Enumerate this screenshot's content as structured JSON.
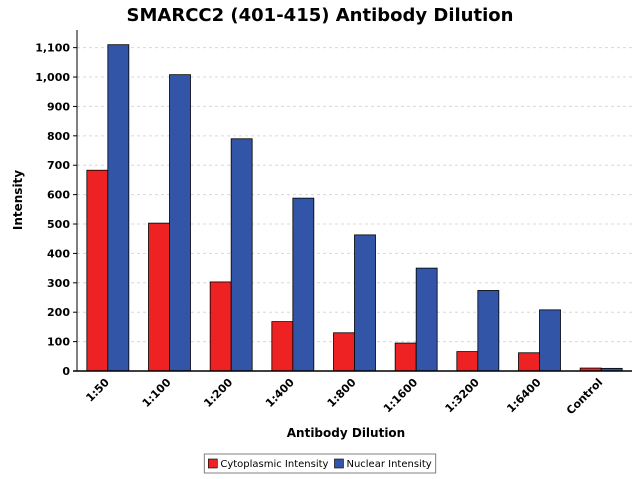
{
  "chart_data": {
    "type": "bar",
    "title": "SMARCC2 (401-415) Antibody Dilution",
    "xlabel": "Antibody Dilution",
    "ylabel": "Intensity",
    "categories": [
      "1:50",
      "1:100",
      "1:200",
      "1:400",
      "1:800",
      "1:1600",
      "1:3200",
      "1:6400",
      "Control"
    ],
    "series": [
      {
        "name": "Cytoplasmic Intensity",
        "color": "#ee2222",
        "values": [
          683,
          503,
          303,
          168,
          130,
          95,
          66,
          62,
          10
        ]
      },
      {
        "name": "Nuclear Intensity",
        "color": "#3355a8",
        "values": [
          1110,
          1008,
          790,
          588,
          463,
          350,
          274,
          208,
          9
        ]
      }
    ],
    "ylim": [
      0,
      1160
    ],
    "yticks": [
      0,
      100,
      200,
      300,
      400,
      500,
      600,
      700,
      800,
      900,
      1000,
      1100
    ],
    "ytick_labels": [
      "0",
      "100",
      "200",
      "300",
      "400",
      "500",
      "600",
      "700",
      "800",
      "900",
      "1,000",
      "1,100"
    ],
    "grid": true,
    "legend_position": "bottom-center"
  }
}
